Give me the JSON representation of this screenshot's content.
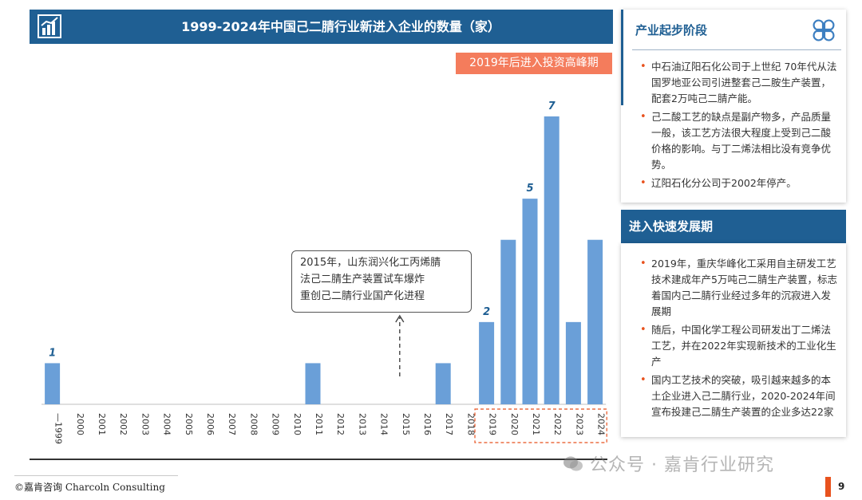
{
  "chart_title": "1999-2024年中国己二腈行业新进入企业的数量（家）",
  "peak_badge": "2019年后进入投资高峰期",
  "callout": {
    "line1": "2015年，山东润兴化工丙烯腈",
    "line2": "法己二腈生产装置试车爆炸",
    "line3": "重创己二腈行业国产化进程"
  },
  "panel1": {
    "title": "产业起步阶段",
    "items": [
      "中石油辽阳石化公司于上世纪 70年代从法国罗地亚公司引进整套己二胺生产装置，配套2万吨己二腈产能。",
      "己二酸工艺的缺点是副产物多，产品质量一般，该工艺方法很大程度上受到己二酸价格的影响。与丁二烯法相比没有竞争优势。",
      "辽阳石化分公司于2002年停产。"
    ]
  },
  "panel2": {
    "title": "进入快速发展期",
    "items": [
      "2019年，重庆华峰化工采用自主研发工艺技术建成年产5万吨己二腈生产装置，标志着国内己二腈行业经过多年的沉寂进入发展期",
      "随后，中国化学工程公司研发出丁二烯法工艺，并在2022年实现新技术的工业化生产",
      "国内工艺技术的突破，吸引越来越多的本土企业进入己二腈行业，2020-2024年间宣布投建己二腈生产装置的企业多达22家"
    ]
  },
  "footer": {
    "copyright": "©嘉肯咨询  Charcoln Consulting",
    "page": "9",
    "watermark": "公众号 · 嘉肯行业研究"
  },
  "colors": {
    "bar": "#6a9fd8",
    "accent": "#1f5f93",
    "badge": "#f47c5c",
    "highlight": "#e8521e"
  },
  "chart_data": {
    "type": "bar",
    "title": "1999-2024年中国己二腈行业新进入企业的数量（家）",
    "categories": [
      "—1999",
      "2000",
      "2001",
      "2002",
      "2003",
      "2004",
      "2005",
      "2006",
      "2007",
      "2008",
      "2009",
      "2010",
      "2011",
      "2012",
      "2013",
      "2014",
      "2015",
      "2016",
      "2017",
      "2018",
      "2019",
      "2020",
      "2021",
      "2022",
      "2023",
      "2024"
    ],
    "values": [
      1,
      0,
      0,
      0,
      0,
      0,
      0,
      0,
      0,
      0,
      0,
      0,
      1,
      0,
      0,
      0,
      0,
      0,
      1,
      0,
      2,
      4,
      5,
      7,
      2,
      4
    ],
    "data_labels": [
      {
        "index": 0,
        "text": "1"
      },
      {
        "index": 20,
        "text": "2"
      },
      {
        "index": 22,
        "text": "5"
      },
      {
        "index": 23,
        "text": "7"
      }
    ],
    "highlight_range": [
      "2019",
      "2024"
    ],
    "ylim": [
      0,
      7
    ],
    "xlabel": "",
    "ylabel": ""
  }
}
